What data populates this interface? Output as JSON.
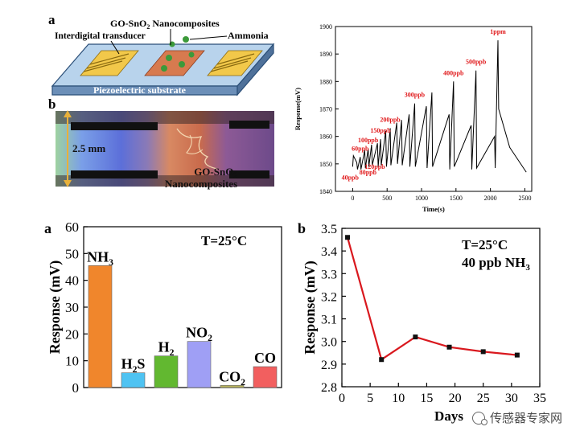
{
  "panel_a_schematic": {
    "panel_label": "a",
    "label_nanocomposites": "GO-SnO",
    "label_nanocomposites_sub": "2",
    "label_nanocomposites_tail": " Nanocomposites",
    "label_transducer": "Interdigital transducer",
    "label_ammonia": "Ammonia",
    "label_substrate": "Piezoelectric substrate"
  },
  "panel_b_photo": {
    "panel_label": "b",
    "scale_label": "2.5 mm",
    "material_label_line1": "GO-SnO",
    "material_label_sub": "2",
    "material_label_line2": "Nanocomposites"
  },
  "chart_data": [
    {
      "type": "line",
      "title": "",
      "xlabel": "Time(s)",
      "ylabel": "Response(mV)",
      "xlim": [
        -250,
        2600
      ],
      "ylim": [
        1840,
        1900
      ],
      "xticks": [
        0,
        500,
        1000,
        1500,
        2000,
        2500
      ],
      "yticks": [
        1840,
        1850,
        1860,
        1870,
        1880,
        1890,
        1900
      ],
      "line_color": "#000000",
      "annotation_color": "#e0191b",
      "series": [
        {
          "x": [
            0,
            10,
            60,
            70,
            110,
            120,
            175,
            185,
            225,
            235,
            275,
            285,
            360,
            370,
            405,
            415,
            480,
            490,
            545,
            555,
            640,
            650,
            710,
            720,
            820,
            830,
            900,
            910,
            1070,
            1080,
            1150,
            1160,
            1400,
            1410,
            1465,
            1475,
            1720,
            1730,
            1790,
            1800,
            2060,
            2070,
            2110,
            2120,
            2280,
            2520
          ],
          "y": [
            1849,
            1853,
            1850.5,
            1848,
            1852.5,
            1848,
            1855,
            1848.5,
            1855.5,
            1849,
            1857,
            1849.5,
            1857.5,
            1849,
            1859,
            1849.5,
            1862,
            1849,
            1863,
            1849.5,
            1865,
            1850,
            1866,
            1849.5,
            1868,
            1849,
            1872,
            1849,
            1871,
            1848.5,
            1876,
            1849,
            1868,
            1848,
            1880,
            1849,
            1864,
            1848,
            1884,
            1848.5,
            1860,
            1848.5,
            1895,
            1870,
            1856,
            1847
          ]
        }
      ],
      "annotations": [
        "40ppb",
        "60ppb",
        "80ppb",
        "100ppb",
        "120ppb",
        "150ppb",
        "200ppb",
        "300ppb",
        "400ppb",
        "500ppb",
        "1ppm"
      ]
    },
    {
      "type": "bar",
      "panel_label": "a",
      "title": "",
      "condition_label": "T=25°C",
      "xlabel": "",
      "ylabel": "Response (mV)",
      "ylim": [
        0,
        60
      ],
      "yticks": [
        0,
        10,
        20,
        30,
        40,
        50,
        60
      ],
      "categories": [
        {
          "base": "NH",
          "sub": "3",
          "tail": ""
        },
        {
          "base": "H",
          "sub": "2",
          "tail": "S"
        },
        {
          "base": "H",
          "sub": "2",
          "tail": ""
        },
        {
          "base": "NO",
          "sub": "2",
          "tail": ""
        },
        {
          "base": "CO",
          "sub": "2",
          "tail": ""
        },
        {
          "base": "CO",
          "sub": "",
          "tail": ""
        }
      ],
      "values": [
        45.5,
        5.5,
        11.8,
        17.2,
        0.8,
        7.8
      ],
      "bar_colors": [
        "#f0862c",
        "#4fc3f2",
        "#62b830",
        "#9f9ff5",
        "#b7b35c",
        "#f25f5f"
      ]
    },
    {
      "type": "line",
      "panel_label": "b",
      "title": "",
      "condition_label_1": "T=25°C",
      "condition_label_2_base": "40 ppb NH",
      "condition_label_2_sub": "3",
      "xlabel": "Days",
      "ylabel": "Response (mV)",
      "xlim": [
        0,
        35
      ],
      "ylim": [
        2.8,
        3.5
      ],
      "xticks": [
        0,
        5,
        10,
        15,
        20,
        25,
        30,
        35
      ],
      "yticks": [
        2.8,
        2.9,
        3.0,
        3.1,
        3.2,
        3.3,
        3.4,
        3.5
      ],
      "line_color": "#d9181e",
      "marker_color": "#111111",
      "series": [
        {
          "x": [
            1,
            7,
            13,
            19,
            25,
            31
          ],
          "y": [
            3.46,
            2.92,
            3.02,
            2.975,
            2.955,
            2.94
          ]
        }
      ]
    }
  ],
  "watermark": {
    "text": "传感器专家网"
  }
}
